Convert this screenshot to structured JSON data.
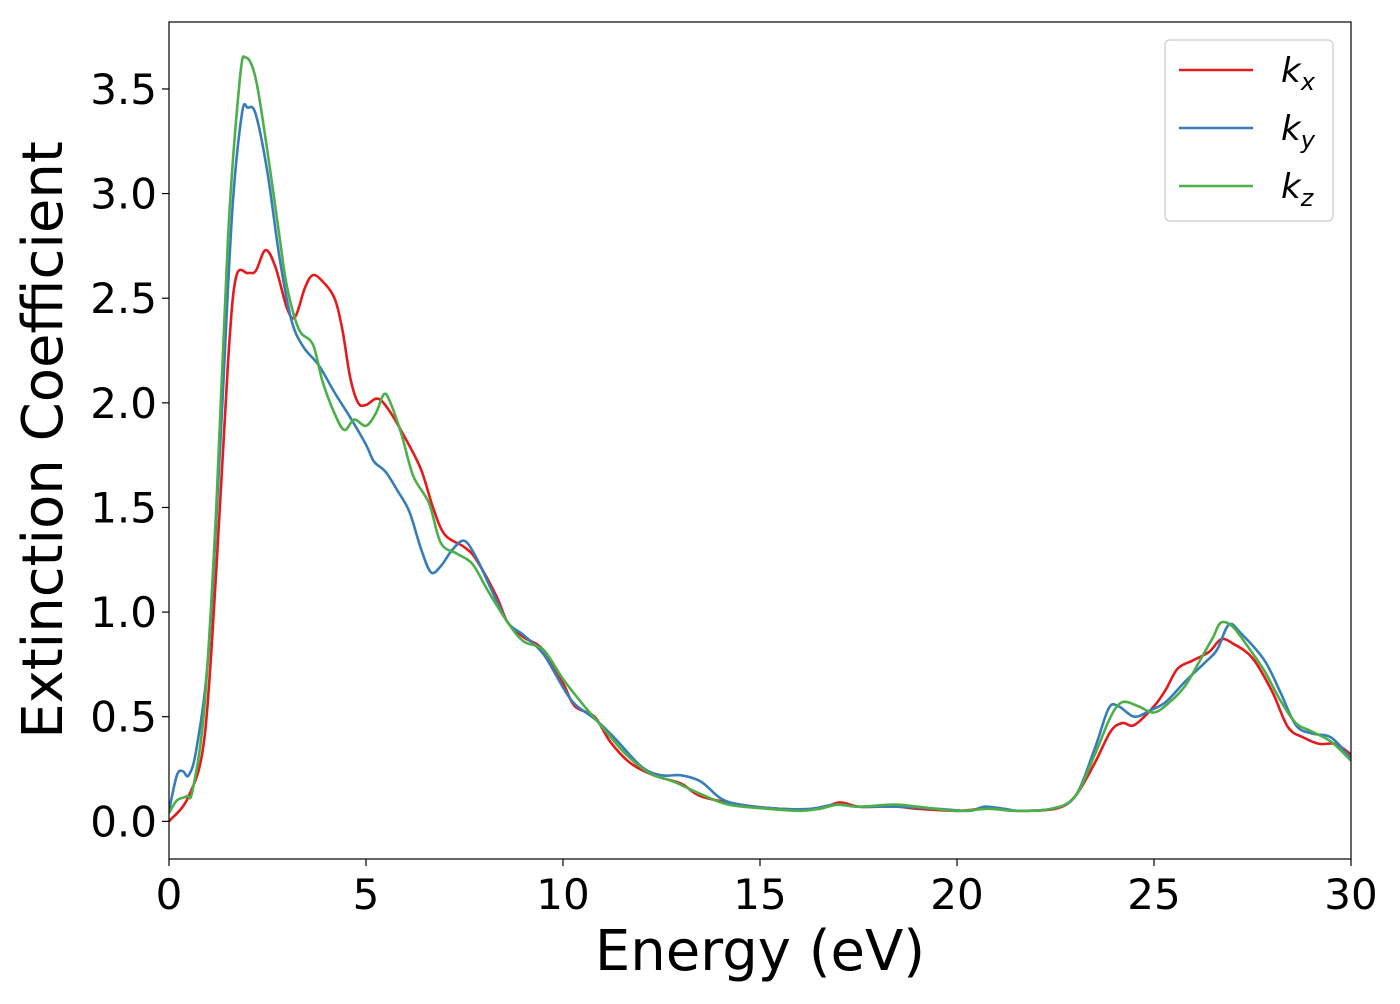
{
  "chart_data": {
    "type": "line",
    "title": "",
    "xlabel": "Energy (eV)",
    "ylabel": "Extinction Coefficient",
    "xlim": [
      0,
      30
    ],
    "ylim": [
      -0.18,
      3.82
    ],
    "xticks": [
      0,
      5,
      10,
      15,
      20,
      25,
      30
    ],
    "xtick_labels": [
      "0",
      "5",
      "10",
      "15",
      "20",
      "25",
      "30"
    ],
    "yticks": [
      0.0,
      0.5,
      1.0,
      1.5,
      2.0,
      2.5,
      3.0,
      3.5
    ],
    "ytick_labels": [
      "0.0",
      "0.5",
      "1.0",
      "1.5",
      "2.0",
      "2.5",
      "3.0",
      "3.5"
    ],
    "grid": false,
    "legend_position": "top-right",
    "series": [
      {
        "name": "k",
        "subscript": "x",
        "color": "#e41a1c",
        "points": [
          [
            0,
            0.0
          ],
          [
            0.5,
            0.12
          ],
          [
            0.9,
            0.4
          ],
          [
            1.2,
            1.2
          ],
          [
            1.5,
            2.2
          ],
          [
            1.7,
            2.6
          ],
          [
            2.0,
            2.62
          ],
          [
            2.2,
            2.63
          ],
          [
            2.45,
            2.73
          ],
          [
            2.7,
            2.65
          ],
          [
            3.0,
            2.45
          ],
          [
            3.2,
            2.41
          ],
          [
            3.45,
            2.55
          ],
          [
            3.65,
            2.61
          ],
          [
            3.9,
            2.58
          ],
          [
            4.2,
            2.5
          ],
          [
            4.4,
            2.35
          ],
          [
            4.6,
            2.12
          ],
          [
            4.8,
            2.0
          ],
          [
            5.0,
            1.99
          ],
          [
            5.3,
            2.02
          ],
          [
            5.6,
            1.96
          ],
          [
            6.0,
            1.83
          ],
          [
            6.4,
            1.68
          ],
          [
            6.7,
            1.5
          ],
          [
            7.0,
            1.37
          ],
          [
            7.5,
            1.31
          ],
          [
            7.8,
            1.25
          ],
          [
            8.3,
            1.08
          ],
          [
            8.6,
            0.95
          ],
          [
            9.0,
            0.88
          ],
          [
            9.5,
            0.82
          ],
          [
            10.0,
            0.66
          ],
          [
            10.3,
            0.55
          ],
          [
            10.8,
            0.5
          ],
          [
            11.2,
            0.38
          ],
          [
            11.7,
            0.28
          ],
          [
            12.3,
            0.22
          ],
          [
            13.0,
            0.18
          ],
          [
            13.5,
            0.12
          ],
          [
            14.5,
            0.08
          ],
          [
            15.5,
            0.06
          ],
          [
            16.5,
            0.06
          ],
          [
            17.0,
            0.09
          ],
          [
            17.5,
            0.07
          ],
          [
            18.0,
            0.07
          ],
          [
            18.5,
            0.07
          ],
          [
            19.0,
            0.06
          ],
          [
            20.0,
            0.05
          ],
          [
            20.6,
            0.06
          ],
          [
            21.0,
            0.06
          ],
          [
            21.5,
            0.05
          ],
          [
            22.5,
            0.06
          ],
          [
            23.0,
            0.12
          ],
          [
            23.5,
            0.28
          ],
          [
            23.9,
            0.43
          ],
          [
            24.2,
            0.47
          ],
          [
            24.5,
            0.46
          ],
          [
            25.0,
            0.55
          ],
          [
            25.3,
            0.63
          ],
          [
            25.6,
            0.73
          ],
          [
            26.0,
            0.77
          ],
          [
            26.4,
            0.81
          ],
          [
            26.7,
            0.87
          ],
          [
            27.0,
            0.85
          ],
          [
            27.5,
            0.78
          ],
          [
            28.0,
            0.62
          ],
          [
            28.4,
            0.45
          ],
          [
            28.8,
            0.4
          ],
          [
            29.2,
            0.37
          ],
          [
            29.6,
            0.37
          ],
          [
            30.0,
            0.32
          ]
        ]
      },
      {
        "name": "k",
        "subscript": "y",
        "color": "#377eb8",
        "points": [
          [
            0,
            0.05
          ],
          [
            0.2,
            0.22
          ],
          [
            0.35,
            0.24
          ],
          [
            0.5,
            0.22
          ],
          [
            0.7,
            0.35
          ],
          [
            1.0,
            0.8
          ],
          [
            1.3,
            1.8
          ],
          [
            1.6,
            2.9
          ],
          [
            1.85,
            3.38
          ],
          [
            2.0,
            3.41
          ],
          [
            2.2,
            3.38
          ],
          [
            2.5,
            3.1
          ],
          [
            2.8,
            2.7
          ],
          [
            3.1,
            2.4
          ],
          [
            3.4,
            2.27
          ],
          [
            3.8,
            2.18
          ],
          [
            4.2,
            2.05
          ],
          [
            4.6,
            1.93
          ],
          [
            5.0,
            1.8
          ],
          [
            5.2,
            1.72
          ],
          [
            5.5,
            1.67
          ],
          [
            5.8,
            1.58
          ],
          [
            6.1,
            1.48
          ],
          [
            6.4,
            1.3
          ],
          [
            6.65,
            1.19
          ],
          [
            6.9,
            1.22
          ],
          [
            7.2,
            1.3
          ],
          [
            7.5,
            1.34
          ],
          [
            7.8,
            1.26
          ],
          [
            8.2,
            1.1
          ],
          [
            8.6,
            0.95
          ],
          [
            9.0,
            0.89
          ],
          [
            9.5,
            0.8
          ],
          [
            10.0,
            0.64
          ],
          [
            10.3,
            0.56
          ],
          [
            10.8,
            0.49
          ],
          [
            11.3,
            0.4
          ],
          [
            12.0,
            0.26
          ],
          [
            12.5,
            0.22
          ],
          [
            13.0,
            0.22
          ],
          [
            13.5,
            0.19
          ],
          [
            14.0,
            0.11
          ],
          [
            14.5,
            0.08
          ],
          [
            15.5,
            0.06
          ],
          [
            16.3,
            0.06
          ],
          [
            16.9,
            0.08
          ],
          [
            17.5,
            0.07
          ],
          [
            18.5,
            0.07
          ],
          [
            19.5,
            0.06
          ],
          [
            20.3,
            0.05
          ],
          [
            20.7,
            0.07
          ],
          [
            21.2,
            0.06
          ],
          [
            21.6,
            0.05
          ],
          [
            22.4,
            0.06
          ],
          [
            23.0,
            0.12
          ],
          [
            23.5,
            0.35
          ],
          [
            23.85,
            0.54
          ],
          [
            24.1,
            0.55
          ],
          [
            24.5,
            0.5
          ],
          [
            24.9,
            0.53
          ],
          [
            25.3,
            0.57
          ],
          [
            25.8,
            0.67
          ],
          [
            26.3,
            0.76
          ],
          [
            26.6,
            0.82
          ],
          [
            26.9,
            0.94
          ],
          [
            27.2,
            0.9
          ],
          [
            27.8,
            0.77
          ],
          [
            28.2,
            0.62
          ],
          [
            28.6,
            0.46
          ],
          [
            29.0,
            0.42
          ],
          [
            29.5,
            0.4
          ],
          [
            30.0,
            0.3
          ]
        ]
      },
      {
        "name": "k",
        "subscript": "z",
        "color": "#4daf4a",
        "points": [
          [
            0,
            0.04
          ],
          [
            0.2,
            0.1
          ],
          [
            0.45,
            0.12
          ],
          [
            0.6,
            0.15
          ],
          [
            0.9,
            0.55
          ],
          [
            1.2,
            1.5
          ],
          [
            1.5,
            2.8
          ],
          [
            1.8,
            3.55
          ],
          [
            1.95,
            3.65
          ],
          [
            2.2,
            3.55
          ],
          [
            2.5,
            3.2
          ],
          [
            2.8,
            2.8
          ],
          [
            3.0,
            2.55
          ],
          [
            3.3,
            2.35
          ],
          [
            3.65,
            2.28
          ],
          [
            3.9,
            2.1
          ],
          [
            4.2,
            1.95
          ],
          [
            4.45,
            1.87
          ],
          [
            4.7,
            1.92
          ],
          [
            5.0,
            1.89
          ],
          [
            5.25,
            1.95
          ],
          [
            5.45,
            2.04
          ],
          [
            5.6,
            2.01
          ],
          [
            5.9,
            1.85
          ],
          [
            6.2,
            1.65
          ],
          [
            6.6,
            1.52
          ],
          [
            6.9,
            1.33
          ],
          [
            7.3,
            1.28
          ],
          [
            7.7,
            1.23
          ],
          [
            8.1,
            1.1
          ],
          [
            8.6,
            0.95
          ],
          [
            9.0,
            0.86
          ],
          [
            9.5,
            0.82
          ],
          [
            10.0,
            0.68
          ],
          [
            10.5,
            0.56
          ],
          [
            11.0,
            0.45
          ],
          [
            11.6,
            0.32
          ],
          [
            12.2,
            0.23
          ],
          [
            12.8,
            0.19
          ],
          [
            13.5,
            0.13
          ],
          [
            14.2,
            0.08
          ],
          [
            15.2,
            0.06
          ],
          [
            16.0,
            0.05
          ],
          [
            16.5,
            0.06
          ],
          [
            17.0,
            0.08
          ],
          [
            17.5,
            0.07
          ],
          [
            18.4,
            0.08
          ],
          [
            19.0,
            0.07
          ],
          [
            20.0,
            0.05
          ],
          [
            20.8,
            0.06
          ],
          [
            21.5,
            0.05
          ],
          [
            22.4,
            0.06
          ],
          [
            23.0,
            0.12
          ],
          [
            23.5,
            0.32
          ],
          [
            23.9,
            0.5
          ],
          [
            24.2,
            0.57
          ],
          [
            24.6,
            0.55
          ],
          [
            25.0,
            0.52
          ],
          [
            25.4,
            0.57
          ],
          [
            25.8,
            0.65
          ],
          [
            26.2,
            0.78
          ],
          [
            26.5,
            0.88
          ],
          [
            26.7,
            0.95
          ],
          [
            27.0,
            0.93
          ],
          [
            27.4,
            0.83
          ],
          [
            27.8,
            0.72
          ],
          [
            28.2,
            0.58
          ],
          [
            28.6,
            0.47
          ],
          [
            29.0,
            0.43
          ],
          [
            29.5,
            0.38
          ],
          [
            30.0,
            0.29
          ]
        ]
      }
    ]
  }
}
